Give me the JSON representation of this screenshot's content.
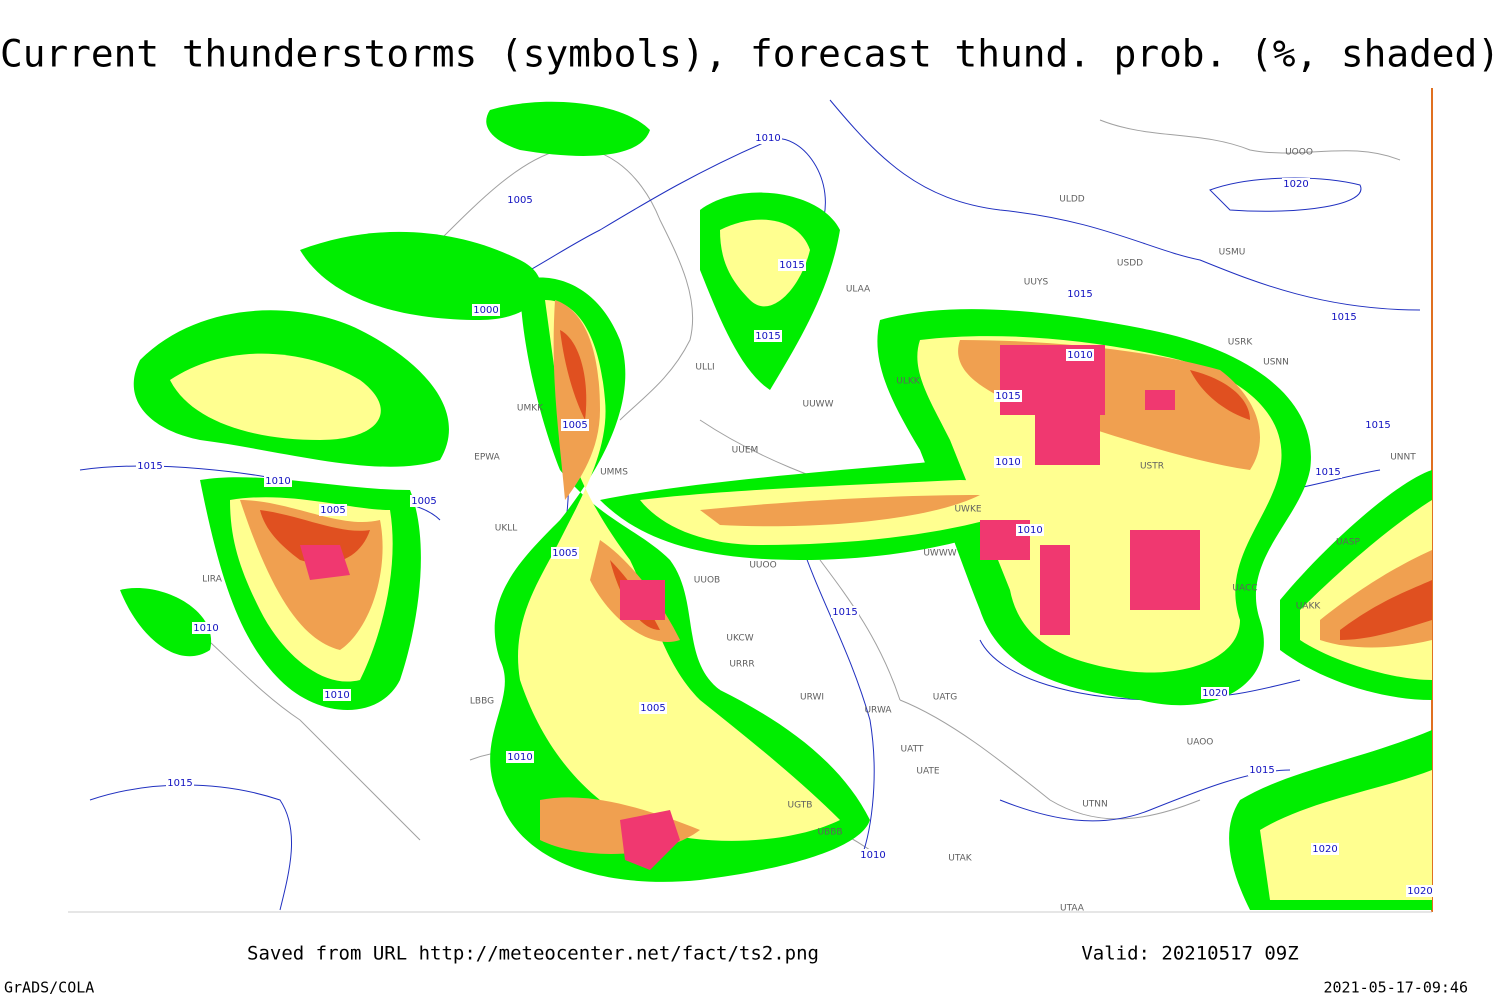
{
  "header": {
    "title": "Current thunderstorms (symbols), forecast thund. prob. (%, shaded)"
  },
  "isobar_labels": [
    "1010",
    "1005",
    "1000",
    "1005",
    "1015",
    "1015",
    "1010",
    "1005",
    "1005",
    "1015",
    "1010",
    "1010",
    "1020",
    "1015",
    "1015",
    "1010",
    "1015",
    "1015",
    "1010",
    "1020",
    "1015",
    "1015",
    "1010",
    "1005",
    "1020",
    "1020",
    "1015",
    "1010",
    "1015",
    "1010",
    "1005"
  ],
  "stations": [
    "ULAA",
    "ULLI",
    "UUEM",
    "UUWW",
    "UUOO",
    "UKCW",
    "URRR",
    "URWI",
    "URWA",
    "UATG",
    "UATE",
    "UTNN",
    "UAOO",
    "UACC",
    "UASP",
    "UNNT",
    "UUYS",
    "USDD",
    "ULDD",
    "USMU",
    "USRK",
    "UWKE",
    "UWWW",
    "UUOB",
    "UMMS",
    "EPWA",
    "UKLL",
    "LIRA",
    "LBBG",
    "UGTB",
    "UBBB",
    "UTAK",
    "UTAA",
    "UAKK",
    "UATT",
    "ULKK",
    "UMKK",
    "UOOO",
    "USNN",
    "USTR"
  ],
  "footer": {
    "saved": "Saved from URL http://meteocenter.net/fact/ts2.png",
    "valid": "Valid: 20210517 09Z",
    "software": "GrADS/COLA",
    "timestamp": "2021-05-17-09:46"
  }
}
